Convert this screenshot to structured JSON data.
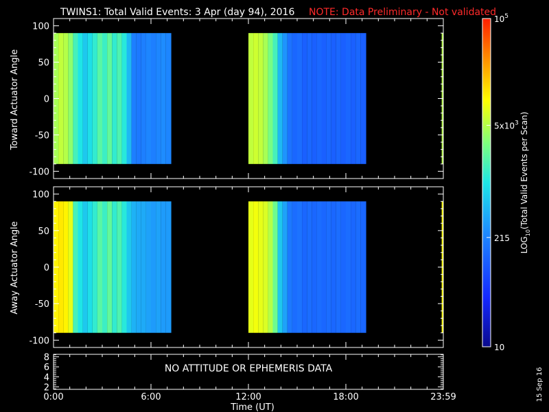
{
  "figure": {
    "title": "TWINS1: Total Valid Events:  3 Apr (day  94), 2016",
    "note": "NOTE: Data Preliminary - Not validated",
    "note_color": "#ff2a2a",
    "side_date": "15 Sep 16",
    "background": "#000000"
  },
  "chart_data": [
    {
      "type": "heatmap",
      "panel": "toward",
      "ylabel": "Toward Actuator Angle",
      "ylim": [
        -110,
        110
      ],
      "yticks": [
        100,
        50,
        0,
        -50,
        -100
      ],
      "angle_range": [
        -90,
        90
      ],
      "xlim": [
        0,
        24
      ],
      "data_segments": [
        {
          "start": 0.0,
          "end": 7.25
        },
        {
          "start": 12.0,
          "end": 19.25
        },
        {
          "start": 23.9,
          "end": 24.0
        }
      ],
      "time_bins": [
        {
          "t": 0.0,
          "v": 3.65
        },
        {
          "t": 0.3,
          "v": 3.75
        },
        {
          "t": 0.6,
          "v": 3.7
        },
        {
          "t": 0.9,
          "v": 3.55
        },
        {
          "t": 1.2,
          "v": 3.2
        },
        {
          "t": 1.5,
          "v": 3.0
        },
        {
          "t": 1.8,
          "v": 2.8
        },
        {
          "t": 2.1,
          "v": 2.95
        },
        {
          "t": 2.4,
          "v": 3.1
        },
        {
          "t": 2.7,
          "v": 3.3
        },
        {
          "t": 3.0,
          "v": 3.15
        },
        {
          "t": 3.3,
          "v": 3.35
        },
        {
          "t": 3.6,
          "v": 3.1
        },
        {
          "t": 3.9,
          "v": 3.25
        },
        {
          "t": 4.2,
          "v": 3.05
        },
        {
          "t": 4.5,
          "v": 2.7
        },
        {
          "t": 4.8,
          "v": 2.3
        },
        {
          "t": 5.1,
          "v": 2.25
        },
        {
          "t": 5.4,
          "v": 2.3
        },
        {
          "t": 5.7,
          "v": 2.35
        },
        {
          "t": 6.0,
          "v": 2.3
        },
        {
          "t": 6.3,
          "v": 2.35
        },
        {
          "t": 6.6,
          "v": 2.4
        },
        {
          "t": 6.9,
          "v": 2.35
        },
        {
          "t": 12.0,
          "v": 3.75
        },
        {
          "t": 12.3,
          "v": 3.8
        },
        {
          "t": 12.6,
          "v": 3.75
        },
        {
          "t": 12.9,
          "v": 3.65
        },
        {
          "t": 13.2,
          "v": 3.45
        },
        {
          "t": 13.5,
          "v": 3.2
        },
        {
          "t": 13.8,
          "v": 2.7
        },
        {
          "t": 14.1,
          "v": 2.45
        },
        {
          "t": 14.4,
          "v": 2.2
        },
        {
          "t": 14.7,
          "v": 2.1
        },
        {
          "t": 15.0,
          "v": 2.15
        },
        {
          "t": 15.3,
          "v": 2.05
        },
        {
          "t": 15.6,
          "v": 2.1
        },
        {
          "t": 15.9,
          "v": 2.05
        },
        {
          "t": 16.2,
          "v": 2.1
        },
        {
          "t": 16.5,
          "v": 2.05
        },
        {
          "t": 16.8,
          "v": 2.1
        },
        {
          "t": 17.1,
          "v": 2.05
        },
        {
          "t": 17.4,
          "v": 2.1
        },
        {
          "t": 17.7,
          "v": 2.05
        },
        {
          "t": 18.0,
          "v": 2.1
        },
        {
          "t": 18.3,
          "v": 2.05
        },
        {
          "t": 18.6,
          "v": 2.1
        },
        {
          "t": 18.9,
          "v": 2.05
        },
        {
          "t": 23.9,
          "v": 3.7
        }
      ]
    },
    {
      "type": "heatmap",
      "panel": "away",
      "ylabel": "Away Actuator Angle",
      "ylim": [
        -110,
        110
      ],
      "yticks": [
        100,
        50,
        0,
        -50,
        -100
      ],
      "angle_range": [
        -90,
        90
      ],
      "xlim": [
        0,
        24
      ],
      "data_segments": [
        {
          "start": 0.0,
          "end": 7.25
        },
        {
          "start": 12.0,
          "end": 19.25
        },
        {
          "start": 23.9,
          "end": 24.0
        }
      ],
      "time_bins": [
        {
          "t": 0.0,
          "v": 4.05
        },
        {
          "t": 0.3,
          "v": 4.1
        },
        {
          "t": 0.6,
          "v": 4.05
        },
        {
          "t": 0.9,
          "v": 3.9
        },
        {
          "t": 1.2,
          "v": 3.2
        },
        {
          "t": 1.5,
          "v": 3.0
        },
        {
          "t": 1.8,
          "v": 2.8
        },
        {
          "t": 2.1,
          "v": 2.95
        },
        {
          "t": 2.4,
          "v": 3.1
        },
        {
          "t": 2.7,
          "v": 3.3
        },
        {
          "t": 3.0,
          "v": 3.15
        },
        {
          "t": 3.3,
          "v": 3.35
        },
        {
          "t": 3.6,
          "v": 3.1
        },
        {
          "t": 3.9,
          "v": 3.25
        },
        {
          "t": 4.2,
          "v": 3.05
        },
        {
          "t": 4.5,
          "v": 2.8
        },
        {
          "t": 4.8,
          "v": 2.65
        },
        {
          "t": 5.1,
          "v": 2.6
        },
        {
          "t": 5.4,
          "v": 2.6
        },
        {
          "t": 5.7,
          "v": 2.55
        },
        {
          "t": 6.0,
          "v": 2.5
        },
        {
          "t": 6.3,
          "v": 2.55
        },
        {
          "t": 6.6,
          "v": 2.5
        },
        {
          "t": 6.9,
          "v": 2.5
        },
        {
          "t": 12.0,
          "v": 3.9
        },
        {
          "t": 12.3,
          "v": 3.95
        },
        {
          "t": 12.6,
          "v": 3.9
        },
        {
          "t": 12.9,
          "v": 3.85
        },
        {
          "t": 13.2,
          "v": 3.7
        },
        {
          "t": 13.5,
          "v": 3.4
        },
        {
          "t": 13.8,
          "v": 2.8
        },
        {
          "t": 14.1,
          "v": 2.55
        },
        {
          "t": 14.4,
          "v": 2.25
        },
        {
          "t": 14.7,
          "v": 2.15
        },
        {
          "t": 15.0,
          "v": 2.2
        },
        {
          "t": 15.3,
          "v": 2.1
        },
        {
          "t": 15.6,
          "v": 2.15
        },
        {
          "t": 15.9,
          "v": 2.1
        },
        {
          "t": 16.2,
          "v": 2.15
        },
        {
          "t": 16.5,
          "v": 2.1
        },
        {
          "t": 16.8,
          "v": 2.15
        },
        {
          "t": 17.1,
          "v": 2.1
        },
        {
          "t": 17.4,
          "v": 2.15
        },
        {
          "t": 17.7,
          "v": 2.1
        },
        {
          "t": 18.0,
          "v": 2.15
        },
        {
          "t": 18.3,
          "v": 2.1
        },
        {
          "t": 18.6,
          "v": 2.15
        },
        {
          "t": 18.9,
          "v": 2.1
        },
        {
          "t": 23.9,
          "v": 4.0
        }
      ]
    },
    {
      "type": "line",
      "panel": "attitude",
      "ylim": [
        1.5,
        8.5
      ],
      "yticks": [
        8,
        6,
        4,
        2
      ],
      "xlim": [
        0,
        24
      ],
      "message": "NO ATTITUDE OR EPHEMERIS DATA",
      "series": []
    }
  ],
  "x_axis": {
    "label": "Time (UT)",
    "ticks": [
      {
        "t": 0,
        "label": "0:00"
      },
      {
        "t": 6,
        "label": "6:00"
      },
      {
        "t": 12,
        "label": "12:00"
      },
      {
        "t": 18,
        "label": "18:00"
      },
      {
        "t": 24,
        "label": "23:59"
      }
    ]
  },
  "colorbar": {
    "label": "LOG",
    "label_sub": "10",
    "label_rest": "(Total Valid Events per Scan)",
    "log_range": [
      1,
      5
    ],
    "ticks": [
      {
        "value": 5,
        "base": "10",
        "sup": "5"
      },
      {
        "value": 3.699,
        "base": "5x10",
        "sup": "3"
      },
      {
        "value": 2.332,
        "base": "215",
        "sup": ""
      },
      {
        "value": 1,
        "base": "10",
        "sup": ""
      }
    ]
  }
}
